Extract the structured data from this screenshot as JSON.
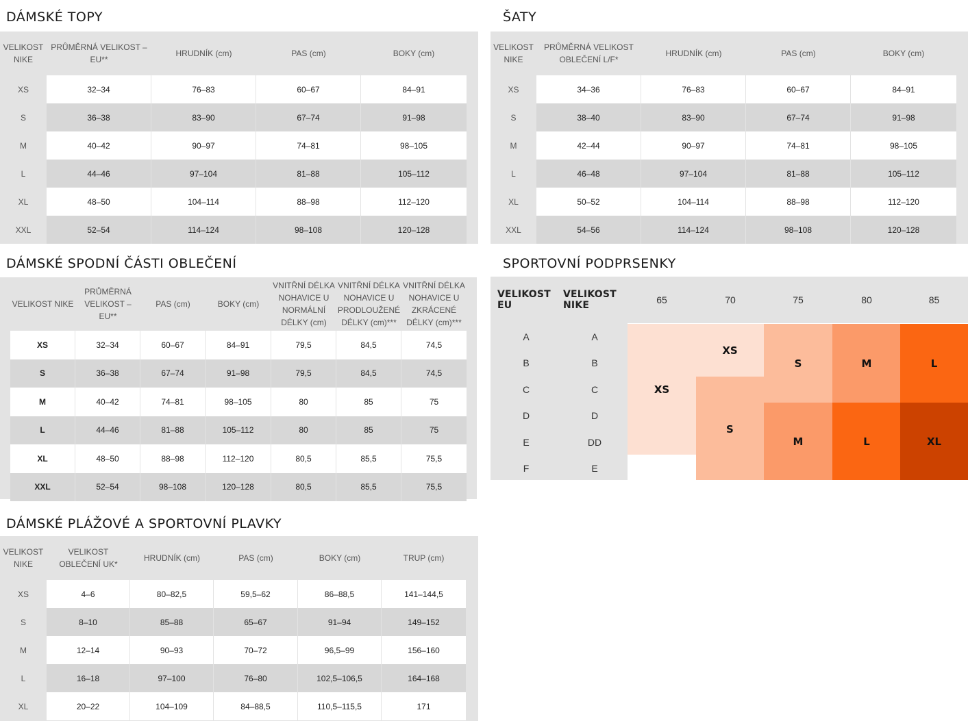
{
  "tops": {
    "title": "DÁMSKÉ TOPY",
    "headers": [
      "VELIKOST NIKE",
      "PRŮMĚRNÁ VELIKOST – EU**",
      "HRUDNÍK (cm)",
      "PAS (cm)",
      "BOKY (cm)"
    ],
    "rows": [
      [
        "XS",
        "32–34",
        "76–83",
        "60–67",
        "84–91"
      ],
      [
        "S",
        "36–38",
        "83–90",
        "67–74",
        "91–98"
      ],
      [
        "M",
        "40–42",
        "90–97",
        "74–81",
        "98–105"
      ],
      [
        "L",
        "44–46",
        "97–104",
        "81–88",
        "105–112"
      ],
      [
        "XL",
        "48–50",
        "104–114",
        "88–98",
        "112–120"
      ],
      [
        "XXL",
        "52–54",
        "114–124",
        "98–108",
        "120–128"
      ]
    ]
  },
  "dresses": {
    "title": "ŠATY",
    "headers": [
      "VELIKOST NIKE",
      "PRŮMĚRNÁ VELIKOST OBLEČENÍ L/F*",
      "HRUDNÍK (cm)",
      "PAS (cm)",
      "BOKY (cm)"
    ],
    "rows": [
      [
        "XS",
        "34–36",
        "76–83",
        "60–67",
        "84–91"
      ],
      [
        "S",
        "38–40",
        "83–90",
        "67–74",
        "91–98"
      ],
      [
        "M",
        "42–44",
        "90–97",
        "74–81",
        "98–105"
      ],
      [
        "L",
        "46–48",
        "97–104",
        "81–88",
        "105–112"
      ],
      [
        "XL",
        "50–52",
        "104–114",
        "88–98",
        "112–120"
      ],
      [
        "XXL",
        "54–56",
        "114–124",
        "98–108",
        "120–128"
      ]
    ]
  },
  "bottoms": {
    "title": "DÁMSKÉ SPODNÍ ČÁSTI OBLEČENÍ",
    "headers": [
      "VELIKOST NIKE",
      "PRŮMĚRNÁ VELIKOST – EU**",
      "PAS (cm)",
      "BOKY (cm)",
      "VNITŘNÍ DÉLKA NOHAVICE U NORMÁLNÍ DÉLKY (cm)",
      "VNITŘNÍ DÉLKA NOHAVICE U PRODLOUŽENÉ DÉLKY (cm)***",
      "VNITŘNÍ DÉLKA NOHAVICE U ZKRÁCENÉ DÉLKY (cm)***"
    ],
    "rows": [
      [
        "XS",
        "32–34",
        "60–67",
        "84–91",
        "79,5",
        "84,5",
        "74,5"
      ],
      [
        "S",
        "36–38",
        "67–74",
        "91–98",
        "79,5",
        "84,5",
        "74,5"
      ],
      [
        "M",
        "40–42",
        "74–81",
        "98–105",
        "80",
        "85",
        "75"
      ],
      [
        "L",
        "44–46",
        "81–88",
        "105–112",
        "80",
        "85",
        "75"
      ],
      [
        "XL",
        "48–50",
        "88–98",
        "112–120",
        "80,5",
        "85,5",
        "75,5"
      ],
      [
        "XXL",
        "52–54",
        "98–108",
        "120–128",
        "80,5",
        "85,5",
        "75,5"
      ]
    ]
  },
  "bras": {
    "title": "SPORTOVNÍ PODPRSENKY",
    "header_eu": "VELIKOST EU",
    "header_nike": "VELIKOST NIKE",
    "band_sizes": [
      "65",
      "70",
      "75",
      "80",
      "85"
    ],
    "cups_eu": [
      "A",
      "B",
      "C",
      "D",
      "E",
      "F"
    ],
    "cups_nike": [
      "A",
      "B",
      "C",
      "D",
      "DD",
      "E"
    ],
    "blocks": {
      "xs_small": "XS",
      "xs_big": "XS",
      "s_top": "S",
      "m_top": "M",
      "l_top": "L",
      "s_bottom": "S",
      "m_bottom": "M",
      "l_bottom": "L",
      "xl_bottom": "XL"
    },
    "colors": {
      "xs": "#fde0d2",
      "s": "#fcbc9b",
      "m": "#fb9a69",
      "l": "#fb6612",
      "xl": "#cc4200"
    }
  },
  "swim": {
    "title": "DÁMSKÉ PLÁŽOVÉ A SPORTOVNÍ PLAVKY",
    "headers": [
      "VELIKOST NIKE",
      "VELIKOST OBLEČENÍ UK*",
      "HRUDNÍK (cm)",
      "PAS (cm)",
      "BOKY (cm)",
      "TRUP (cm)"
    ],
    "rows": [
      [
        "XS",
        "4–6",
        "80–82,5",
        "59,5–62",
        "86–88,5",
        "141–144,5"
      ],
      [
        "S",
        "8–10",
        "85–88",
        "65–67",
        "91–94",
        "149–152"
      ],
      [
        "M",
        "12–14",
        "90–93",
        "70–72",
        "96,5–99",
        "156–160"
      ],
      [
        "L",
        "16–18",
        "97–100",
        "76–80",
        "102,5–106,5",
        "164–168"
      ],
      [
        "XL",
        "20–22",
        "104–109",
        "84–88,5",
        "110,5–115,5",
        "171"
      ]
    ]
  }
}
